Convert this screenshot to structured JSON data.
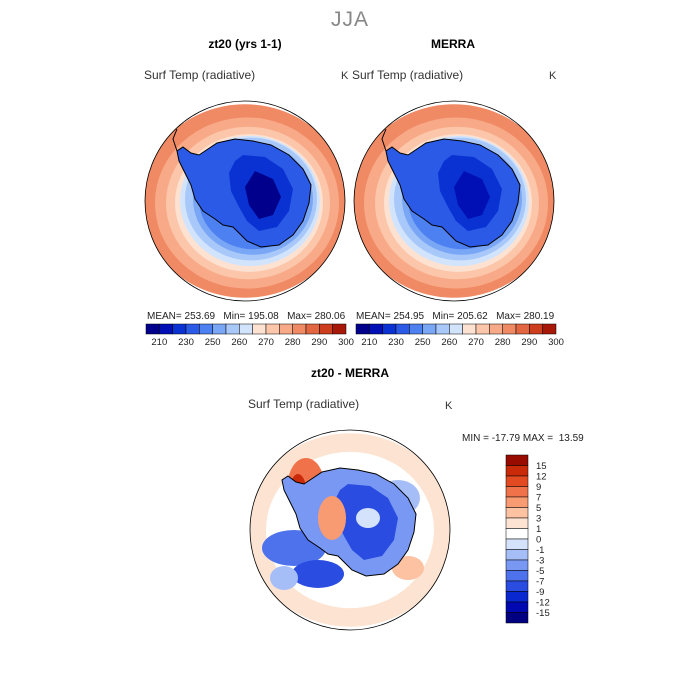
{
  "season": "JJA",
  "panels": [
    {
      "title": "zt20 (yrs 1-1)",
      "variable": "Surf Temp (radiative)",
      "unit": "K",
      "stats": "MEAN= 253.69   Min= 195.08   Max= 280.06"
    },
    {
      "title": "MERRA",
      "variable": "Surf Temp (radiative)",
      "unit": "K",
      "stats": "MEAN= 254.95   Min= 205.62   Max= 280.19"
    },
    {
      "title": "zt20 - MERRA",
      "variable": "Surf Temp (radiative)",
      "unit": "K",
      "stats": "MIN = -17.79 MAX =  13.59"
    }
  ],
  "colors": {
    "abs": [
      "#00008c",
      "#0010b4",
      "#0a32d2",
      "#2a5ae6",
      "#4d80f0",
      "#7aa6f6",
      "#a8c8fa",
      "#d2e4fc",
      "#fde2d2",
      "#fcc6aa",
      "#f8aa88",
      "#f08a64",
      "#e26642",
      "#cc3e1e",
      "#a81808"
    ],
    "diff": [
      "#000080",
      "#0008b0",
      "#0a28d0",
      "#2a4ce0",
      "#4e72ec",
      "#7898f4",
      "#a6bef8",
      "#d4e2fc",
      "#ffffff",
      "#fde4d2",
      "#fcc2a2",
      "#f89a72",
      "#f0724a",
      "#e24a22",
      "#c82a0a",
      "#980c00"
    ]
  },
  "chart_data": [
    {
      "type": "heatmap",
      "title": "zt20 (yrs 1-1)",
      "variable": "Surf Temp (radiative)",
      "units": "K",
      "projection": "south polar stereographic",
      "stats": {
        "mean": 253.69,
        "min": 195.08,
        "max": 280.06
      },
      "colorbar_ticks": [
        210,
        230,
        250,
        260,
        270,
        280,
        290,
        300
      ]
    },
    {
      "type": "heatmap",
      "title": "MERRA",
      "variable": "Surf Temp (radiative)",
      "units": "K",
      "projection": "south polar stereographic",
      "stats": {
        "mean": 254.95,
        "min": 205.62,
        "max": 280.19
      },
      "colorbar_ticks": [
        210,
        230,
        250,
        260,
        270,
        280,
        290,
        300
      ]
    },
    {
      "type": "heatmap",
      "title": "zt20 - MERRA",
      "variable": "Surf Temp (radiative)",
      "units": "K",
      "projection": "south polar stereographic",
      "stats": {
        "min": -17.79,
        "max": 13.59
      },
      "colorbar_ticks": [
        15,
        12,
        9,
        7,
        5,
        3,
        1,
        0,
        -1,
        -3,
        -5,
        -7,
        -9,
        -12,
        -15
      ]
    }
  ]
}
